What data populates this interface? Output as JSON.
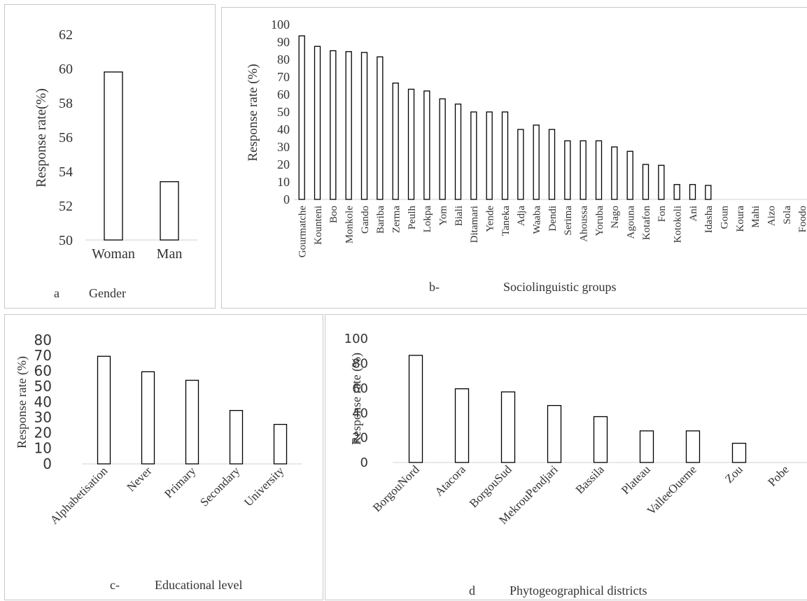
{
  "chart_data": [
    {
      "id": "a",
      "type": "bar",
      "panel_label": "a",
      "xlabel": "Gender",
      "ylabel": "Response  rate(%)",
      "categories": [
        "Woman",
        "Man"
      ],
      "values": [
        59.8,
        53.4
      ],
      "ylim": [
        50,
        62
      ],
      "yticks": [
        "50",
        "52",
        "54",
        "56",
        "58",
        "60",
        "62"
      ],
      "grid": false
    },
    {
      "id": "b",
      "type": "bar",
      "panel_label": "b-",
      "xlabel": "Sociolinguistic groups",
      "ylabel": "Response  rate (%)",
      "categories": [
        "Gourmatche",
        "Kounteni",
        "Boo",
        "Monkole",
        "Gando",
        "Bariba",
        "Zerma",
        "Peulh",
        "Lokpa",
        "Yom",
        "Biali",
        "Ditamari",
        "Yende",
        "Taneka",
        "Adja",
        "Waaba",
        "Dendi",
        "Serima",
        "Ahoussa",
        "Yoruba",
        "Nago",
        "Agouna",
        "Kotafon",
        "Fon",
        "Kotokoli",
        "Ani",
        "Idasha",
        "Goun",
        "Koura",
        "Mahi",
        "Aizo",
        "Sola",
        "Foodo"
      ],
      "values": [
        93.5,
        87.5,
        85,
        84.5,
        84,
        81.5,
        66.5,
        63,
        62,
        57.5,
        54.5,
        50,
        50,
        50,
        40,
        42.5,
        40,
        33.5,
        33.5,
        33.5,
        30,
        27.5,
        20,
        19.5,
        8.5,
        8.5,
        8,
        0,
        0,
        0,
        0,
        0,
        0
      ],
      "ylim": [
        0,
        100
      ],
      "yticks": [
        "0",
        "10",
        "20",
        "30",
        "40",
        "50",
        "60",
        "70",
        "80",
        "90",
        "100"
      ],
      "grid": false
    },
    {
      "id": "c",
      "type": "bar",
      "panel_label": "c-",
      "xlabel": "Educational level",
      "ylabel": "Response  rate (%)",
      "categories": [
        "Alphabetisation",
        "Never",
        "Primary",
        "Secondary",
        "University"
      ],
      "values": [
        69.5,
        59.5,
        54,
        34.5,
        25.5
      ],
      "ylim": [
        0,
        80
      ],
      "yticks": [
        "0",
        "10",
        "20",
        "30",
        "40",
        "50",
        "60",
        "70",
        "80"
      ],
      "grid": false
    },
    {
      "id": "d",
      "type": "bar",
      "panel_label": "d",
      "xlabel": "Phytogeographical districts",
      "ylabel": "Response rate (%)",
      "categories": [
        "BorgouNord",
        "Atacora",
        "BorgouSud",
        "MekrouPendjari",
        "Bassila",
        "Plateau",
        "ValleeOueme",
        "Zou",
        "Pobe"
      ],
      "values": [
        86.5,
        59.5,
        57,
        46,
        37,
        25.5,
        25.5,
        15.5,
        0
      ],
      "ylim": [
        0,
        100
      ],
      "yticks": [
        "0",
        "20",
        "40",
        "60",
        "80",
        "100"
      ],
      "grid": false
    }
  ]
}
